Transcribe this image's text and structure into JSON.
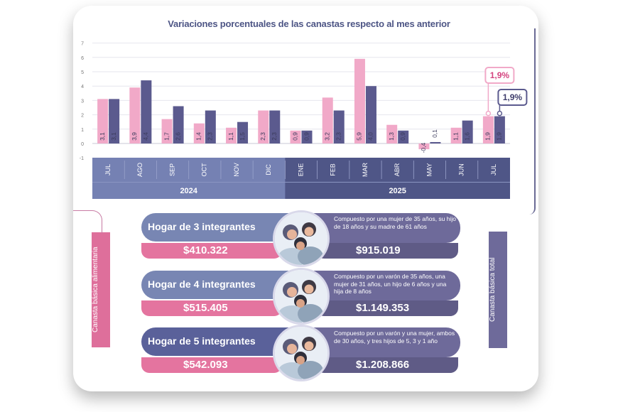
{
  "chart_data": {
    "type": "bar",
    "title": "Variaciones porcentuales de las canastas respecto al mes anterior",
    "categories": [
      "JUL",
      "AGO",
      "SEP",
      "OCT",
      "NOV",
      "DIC",
      "ENE",
      "FEB",
      "MAR",
      "ABR",
      "MAY",
      "JUN",
      "JUL"
    ],
    "year_groups": [
      {
        "label": "2024",
        "start": 0,
        "end": 5
      },
      {
        "label": "2025",
        "start": 6,
        "end": 12
      }
    ],
    "series": [
      {
        "values": [
          3.1,
          3.9,
          1.7,
          1.4,
          1.1,
          2.3,
          0.9,
          3.2,
          5.9,
          1.3,
          -0.4,
          1.1,
          1.9
        ],
        "labels": [
          "3,1",
          "3,9",
          "1,7",
          "1,4",
          "1,1",
          "2,3",
          "0,9",
          "3,2",
          "5,9",
          "1,3",
          "-0,4",
          "1,1",
          "1,9"
        ],
        "color": "#f1a9c8"
      },
      {
        "values": [
          3.1,
          4.4,
          2.6,
          2.3,
          1.5,
          2.3,
          0.9,
          2.3,
          4.0,
          0.9,
          0.1,
          1.6,
          1.9
        ],
        "labels": [
          "3,1",
          "4,4",
          "2,6",
          "2,3",
          "1,5",
          "2,3",
          "0,9",
          "2,3",
          "4,0",
          "0,9",
          "0,1",
          "1,6",
          "1,9"
        ],
        "color": "#5b5a8e"
      }
    ],
    "ylim": [
      -1,
      7
    ],
    "yticks": [
      -1,
      0,
      1,
      2,
      3,
      4,
      5,
      6,
      7
    ],
    "callouts": [
      {
        "series": 0,
        "index": 12,
        "text": "1,9%"
      },
      {
        "series": 1,
        "index": 12,
        "text": "1,9%"
      }
    ],
    "grid": true
  },
  "labels": {
    "left": "Canasta básica alimentaria",
    "right": "Canasta básica total"
  },
  "households": [
    {
      "title": "Hogar de 3 integrantes",
      "cba": "$410.322",
      "cbt": "$915.019",
      "desc": "Compuesto por una mujer de 35 años, su hijo de 18 años y su madre de 61 años"
    },
    {
      "title": "Hogar de 4 integrantes",
      "cba": "$515.405",
      "cbt": "$1.149.353",
      "desc": "Compuesto por un varón de 35 años, una mujer de 31 años, un hijo de 6 años y una hija de 8 años"
    },
    {
      "title": "Hogar de 5 integrantes",
      "cba": "$542.093",
      "cbt": "$1.208.866",
      "desc": "Compuesto por un varón y una mujer, ambos de 30 años, y tres hijos de 5, 3 y 1 año"
    }
  ],
  "colors": {
    "pink": "#f1a9c8",
    "purple": "#5b5a8e",
    "axis_band": "#7581b3",
    "axis_band_dark": "#4f5687",
    "price_pink": "#e4749f",
    "price_dark": "#5f5b86",
    "side_pink": "#de6f9b",
    "side_purple": "#6e6a9a"
  }
}
